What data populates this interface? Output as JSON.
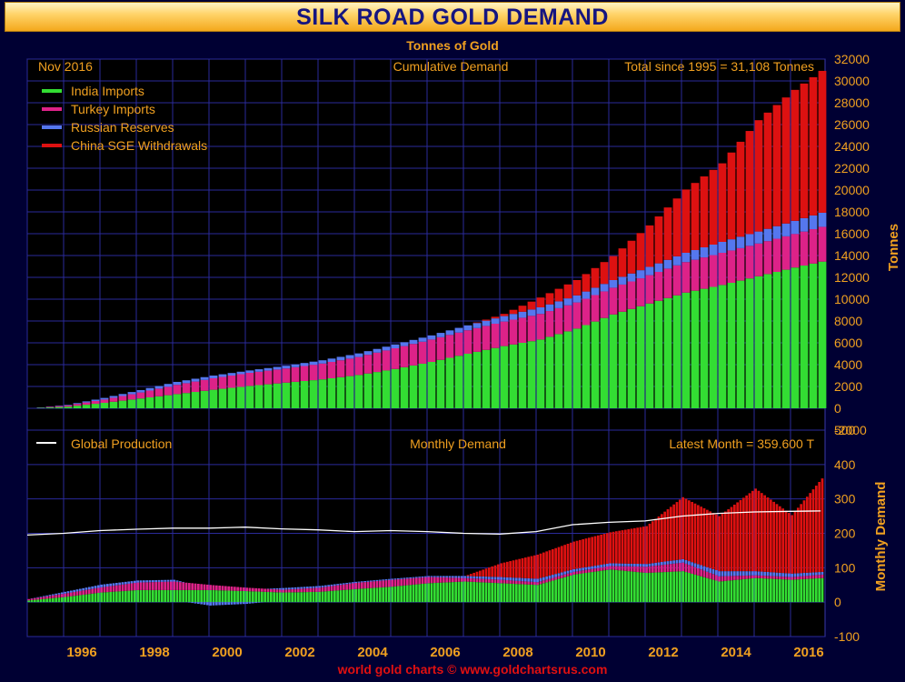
{
  "title": "SILK ROAD GOLD DEMAND",
  "subtitle": "Tonnes of Gold",
  "footer": "world gold charts © www.goldchartsrus.com",
  "colors": {
    "background": "#000033",
    "plot_bg": "#000000",
    "grid": "#2a2a9a",
    "label": "#f0a020",
    "title": "#151580",
    "footer": "#e01010",
    "india": "#33dd33",
    "turkey": "#dd2288",
    "russia": "#5577ee",
    "china": "#dd1111",
    "production": "#ffffff"
  },
  "upper": {
    "header_left": "Nov 2016",
    "header_center": "Cumulative Demand",
    "header_right": "Total since 1995 = 31,108 Tonnes",
    "ylabel": "Tonnes",
    "ylim": [
      -2000,
      32000
    ],
    "yticks": [
      "32000",
      "30000",
      "28000",
      "26000",
      "24000",
      "22000",
      "20000",
      "18000",
      "16000",
      "14000",
      "12000",
      "10000",
      "8000",
      "6000",
      "4000",
      "2000",
      "0",
      "-2000"
    ],
    "legend": [
      {
        "label": "India Imports",
        "color_key": "india"
      },
      {
        "label": "Turkey Imports",
        "color_key": "turkey"
      },
      {
        "label": "Russian Reserves",
        "color_key": "russia"
      },
      {
        "label": "China SGE Withdrawals",
        "color_key": "china"
      }
    ]
  },
  "lower": {
    "legend_label": "Global Production",
    "header_center": "Monthly Demand",
    "header_right": "Latest Month = 359.600 T",
    "ylabel": "Monthly Demand",
    "ylim": [
      -100,
      500
    ],
    "yticks": [
      "500",
      "400",
      "300",
      "200",
      "100",
      "0",
      "-100"
    ]
  },
  "xticks": [
    "1996",
    "1998",
    "2000",
    "2002",
    "2004",
    "2006",
    "2008",
    "2010",
    "2012",
    "2014",
    "2016"
  ],
  "chart_data": [
    {
      "type": "bar",
      "stacked": true,
      "title": "Cumulative Demand",
      "ylabel": "Tonnes",
      "ylim": [
        -2000,
        32000
      ],
      "x_unit": "year",
      "x": [
        1995.0,
        1996.0,
        1997.0,
        1998.0,
        1999.0,
        2000.0,
        2001.0,
        2002.0,
        2003.0,
        2004.0,
        2005.0,
        2006.0,
        2007.0,
        2008.0,
        2009.0,
        2010.0,
        2011.0,
        2012.0,
        2013.0,
        2014.0,
        2015.0,
        2016.0,
        2016.83
      ],
      "series": [
        {
          "name": "India Imports",
          "values": [
            0,
            150,
            500,
            900,
            1300,
            1700,
            2050,
            2350,
            2650,
            3050,
            3600,
            4250,
            5000,
            5700,
            6300,
            7300,
            8600,
            9600,
            10600,
            11300,
            12100,
            12900,
            13500
          ]
        },
        {
          "name": "Turkey Imports",
          "values": [
            0,
            120,
            300,
            550,
            850,
            1050,
            1200,
            1300,
            1450,
            1650,
            1900,
            2050,
            2150,
            2250,
            2350,
            2400,
            2450,
            2600,
            2800,
            2950,
            3000,
            3080,
            3200
          ]
        },
        {
          "name": "Russian Reserves",
          "values": [
            0,
            50,
            150,
            220,
            270,
            250,
            220,
            250,
            300,
            330,
            350,
            380,
            450,
            500,
            600,
            650,
            700,
            760,
            850,
            1000,
            1100,
            1200,
            1300
          ]
        },
        {
          "name": "China SGE Withdrawals",
          "values": [
            0,
            0,
            0,
            0,
            0,
            0,
            0,
            0,
            0,
            0,
            0,
            0,
            0,
            200,
            900,
            1400,
            2200,
            3800,
            5800,
            7200,
            10200,
            12000,
            13108
          ]
        }
      ]
    },
    {
      "type": "bar",
      "stacked": true,
      "title": "Monthly Demand",
      "ylabel": "Monthly Demand",
      "ylim": [
        -100,
        500
      ],
      "x_unit": "year",
      "x": [
        1995.0,
        1996.0,
        1997.0,
        1998.0,
        1999.0,
        2000.0,
        2001.0,
        2002.0,
        2003.0,
        2004.0,
        2005.0,
        2006.0,
        2007.0,
        2008.0,
        2009.0,
        2010.0,
        2011.0,
        2012.0,
        2013.0,
        2014.0,
        2015.0,
        2016.0,
        2016.83
      ],
      "series": [
        {
          "name": "India Imports",
          "values": [
            5,
            15,
            28,
            35,
            35,
            35,
            32,
            28,
            30,
            38,
            45,
            55,
            60,
            55,
            50,
            80,
            95,
            85,
            90,
            60,
            70,
            65,
            70
          ]
        },
        {
          "name": "Turkey Imports",
          "values": [
            4,
            10,
            15,
            22,
            25,
            15,
            10,
            8,
            12,
            18,
            20,
            18,
            10,
            10,
            8,
            8,
            10,
            18,
            25,
            15,
            8,
            8,
            10
          ]
        },
        {
          "name": "Russian Reserves",
          "values": [
            0,
            5,
            8,
            6,
            5,
            -10,
            -5,
            5,
            5,
            3,
            3,
            3,
            6,
            8,
            10,
            8,
            8,
            8,
            10,
            15,
            12,
            10,
            8
          ]
        },
        {
          "name": "China SGE Withdrawals",
          "values": [
            0,
            0,
            0,
            0,
            0,
            0,
            0,
            0,
            0,
            0,
            0,
            0,
            0,
            40,
            70,
            80,
            90,
            110,
            180,
            160,
            240,
            170,
            271.6
          ]
        },
        {
          "name": "Global Production",
          "type": "line",
          "values": [
            195,
            200,
            208,
            212,
            215,
            215,
            218,
            213,
            210,
            205,
            208,
            205,
            200,
            198,
            205,
            225,
            232,
            236,
            250,
            258,
            262,
            264,
            265
          ]
        }
      ]
    }
  ]
}
